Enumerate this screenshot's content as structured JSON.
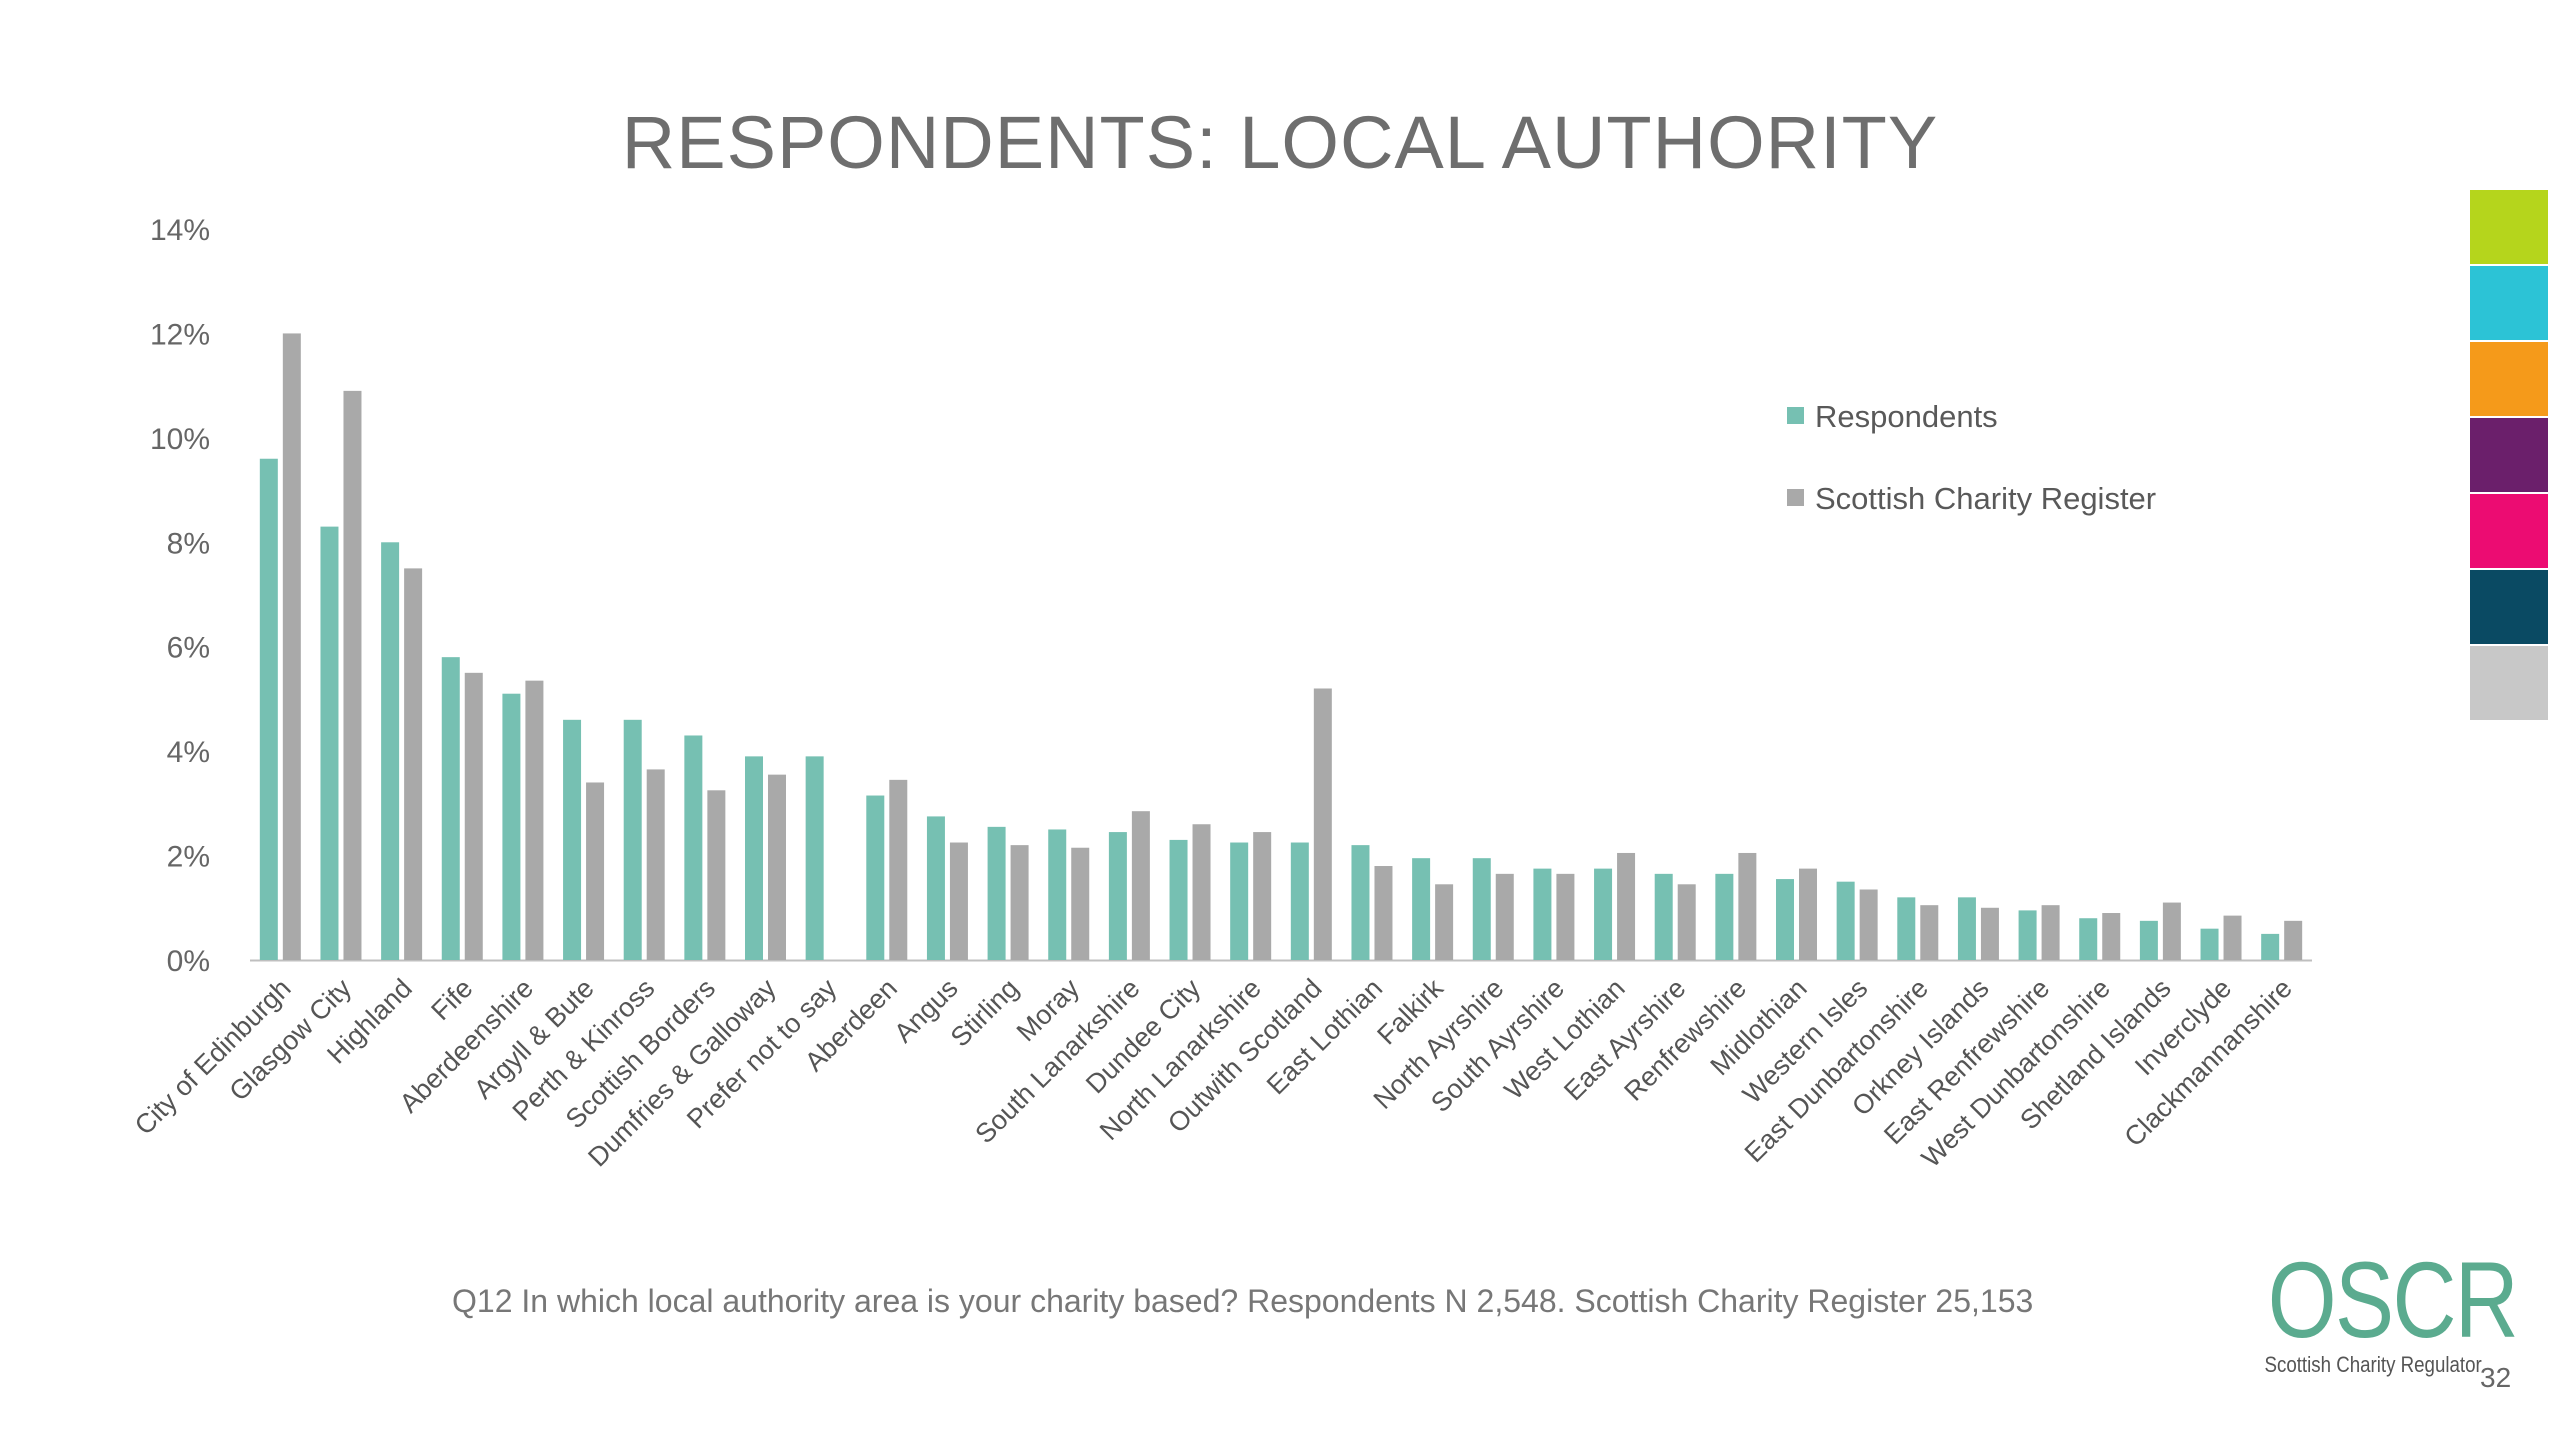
{
  "slide": {
    "title": "RESPONDENTS: LOCAL AUTHORITY",
    "caption": "Q12 In which local authority area is your charity based? Respondents N 2,548. Scottish Charity Register 25,153",
    "page_number": "32",
    "logo": {
      "text": "OSCR",
      "subtitle": "Scottish Charity Regulator"
    },
    "color_strip": [
      "#b5d51c",
      "#2cc3d6",
      "#f59a1a",
      "#6b1f6b",
      "#ec0c72",
      "#0a4a63",
      "#c8c8c8"
    ]
  },
  "chart_data": {
    "type": "bar",
    "title": "RESPONDENTS: LOCAL AUTHORITY",
    "xlabel": "",
    "ylabel": "",
    "ylim": [
      0,
      14
    ],
    "yticks": [
      0,
      2,
      4,
      6,
      8,
      10,
      12,
      14
    ],
    "ytick_labels": [
      "0%",
      "2%",
      "4%",
      "6%",
      "8%",
      "10%",
      "12%",
      "14%"
    ],
    "grid": false,
    "legend": "right",
    "categories": [
      "City of Edinburgh",
      "Glasgow City",
      "Highland",
      "Fife",
      "Aberdeenshire",
      "Argyll & Bute",
      "Perth & Kinross",
      "Scottish Borders",
      "Dumfries & Galloway",
      "Prefer not to say",
      "Aberdeen",
      "Angus",
      "Stirling",
      "Moray",
      "South Lanarkshire",
      "Dundee City",
      "North Lanarkshire",
      "Outwith Scotland",
      "East Lothian",
      "Falkirk",
      "North Ayrshire",
      "South Ayrshire",
      "West Lothian",
      "East Ayrshire",
      "Renfrewshire",
      "Midlothian",
      "Western Isles",
      "East Dunbartonshire",
      "Orkney Islands",
      "East Renfrewshire",
      "West Dunbartonshire",
      "Shetland Islands",
      "Inverclyde",
      "Clackmannanshire"
    ],
    "series": [
      {
        "name": "Respondents",
        "color": "#76c0b2",
        "values": [
          9.6,
          8.3,
          8.0,
          5.8,
          5.1,
          4.6,
          4.6,
          4.3,
          3.9,
          3.9,
          3.15,
          2.75,
          2.55,
          2.5,
          2.45,
          2.3,
          2.25,
          2.25,
          2.2,
          1.95,
          1.95,
          1.75,
          1.75,
          1.65,
          1.65,
          1.55,
          1.5,
          1.2,
          1.2,
          0.95,
          0.8,
          0.75,
          0.6,
          0.5
        ]
      },
      {
        "name": "Scottish Charity Register",
        "color": "#a9a9a9",
        "values": [
          12.0,
          10.9,
          7.5,
          5.5,
          5.35,
          3.4,
          3.65,
          3.25,
          3.55,
          null,
          3.45,
          2.25,
          2.2,
          2.15,
          2.85,
          2.6,
          2.45,
          5.2,
          1.8,
          1.45,
          1.65,
          1.65,
          2.05,
          1.45,
          2.05,
          1.75,
          1.35,
          1.05,
          1.0,
          1.05,
          0.9,
          1.1,
          0.85,
          0.75
        ]
      }
    ]
  }
}
